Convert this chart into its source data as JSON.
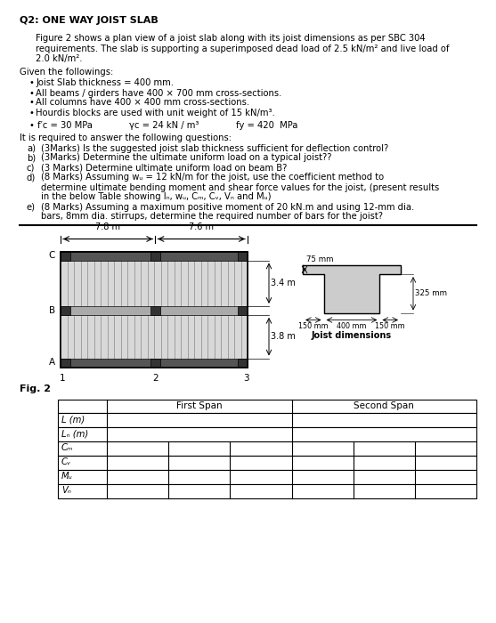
{
  "title": "Q2: ONE WAY JOIST SLAB",
  "bg_color": "#ffffff",
  "intro_text": "Figure 2 shows a plan view of a joist slab along with its joist dimensions as per SBC 304\nrequirements. The slab is supporting a superimposed dead load of 2.5 kN/m² and live load of\n2.0 kN/m².",
  "given_title": "Given the followings:",
  "bullets": [
    "Joist Slab thickness = 400 mm.",
    "All beams / girders have 400 × 700 mm cross-sections.",
    "All columns have 400 × 400 mm cross-sections.",
    "Hourdis blocks are used with unit weight of 15 kN/m³."
  ],
  "questions_title": "It is required to answer the following questions:",
  "questions": [
    [
      "a)",
      "(3Marks) Is the suggested joist slab thickness sufficient for deflection control?"
    ],
    [
      "b)",
      "(3Marks) Determine the ultimate uniform load on a typical joist??"
    ],
    [
      "c)",
      "(3 Marks) Determine ultimate uniform load on beam B?"
    ],
    [
      "d)",
      "(8 Marks) Assuming wᵤ = 12 kN/m for the joist, use the coefficient method to"
    ],
    [
      "",
      "determine ultimate bending moment and shear force values for the joist, (present results"
    ],
    [
      "",
      "in the below Table showing lₙ, wᵤ, Cₘ, Cᵥ, Vₙ and Mᵤ)"
    ],
    [
      "e)",
      "(8 Marks) Assuming a maximum positive moment of 20 kN.m and using 12-mm dia."
    ],
    [
      "",
      "bars, 8mm dia. stirrups, determine the required number of bars for the joist?"
    ]
  ],
  "fig_label": "Fig. 2",
  "span1": "7.8 m",
  "span2": "7.6 m",
  "row_labels": [
    "L (m)",
    "Lₙ (m)",
    "Cₘ",
    "Cᵥ",
    "Mᵤ",
    "Vₙ"
  ],
  "col_headers": [
    "",
    "First Span",
    "Second Span"
  ],
  "joist_dims": {
    "top_label": "75 mm",
    "right_label": "325 mm",
    "bot_left": "150 mm",
    "bot_mid": "400 mm",
    "bot_right": "150 mm",
    "joist_label": "Joist dimensions"
  },
  "dim_34": "3.4 m",
  "dim_38": "3.8 m",
  "plan_row_labels": [
    "C",
    "B",
    "A"
  ],
  "plan_col_labels": [
    "1",
    "2",
    "3"
  ]
}
